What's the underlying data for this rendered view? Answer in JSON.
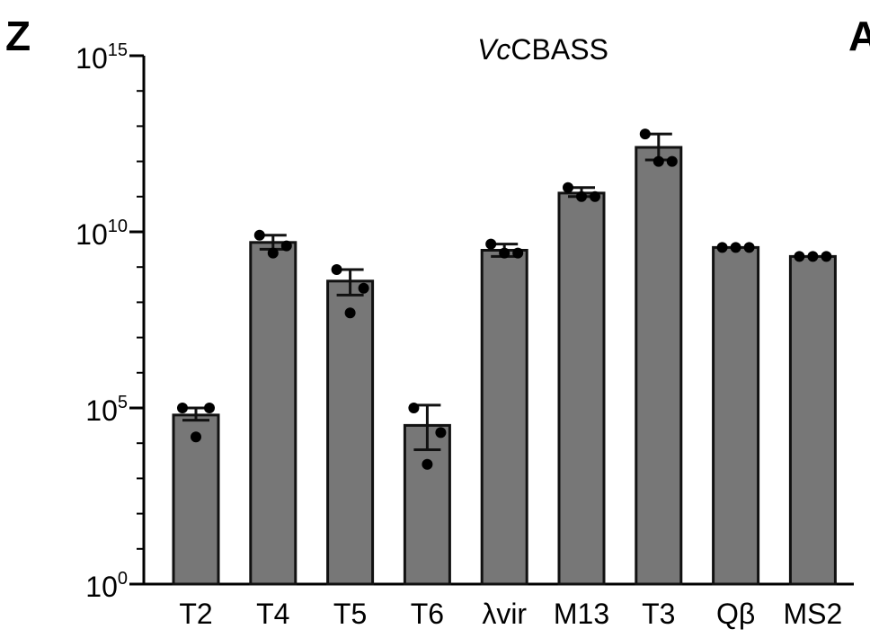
{
  "panel_label": "Z",
  "panel_label_cut": "A",
  "chart_data": {
    "type": "bar",
    "title": "VcCBASS",
    "title_italic_part": "Vc",
    "title_rest": "CBASS",
    "yscale": "log",
    "ylim": [
      1,
      1000000000000000.0
    ],
    "yticks": [
      {
        "base": "10",
        "exp": "15"
      },
      {
        "base": "10",
        "exp": "10"
      },
      {
        "base": "10",
        "exp": "5"
      },
      {
        "base": "10",
        "exp": "0"
      }
    ],
    "ytick_values": [
      1000000000000000.0,
      10000000000.0,
      100000.0,
      1
    ],
    "categories": [
      "T2",
      "T4",
      "T5",
      "T6",
      "λvir",
      "M13",
      "T3",
      "Qβ",
      "MS2"
    ],
    "values": [
      63000.0,
      5000000000.0,
      400000000.0,
      32000.0,
      3000000000.0,
      126000000000.0,
      2500000000000.0,
      3600000000.0,
      2000000000.0
    ],
    "error_bars": [
      [
        45000.0,
        100000.0
      ],
      [
        3200000000.0,
        8000000000.0
      ],
      [
        160000000.0,
        850000000.0
      ],
      [
        6500.0,
        120000.0
      ],
      [
        2000000000.0,
        4500000000.0
      ],
      [
        100000000000.0,
        180000000000.0
      ],
      [
        1100000000000.0,
        6000000000000.0
      ],
      null,
      null
    ],
    "points": [
      [
        100000.0,
        100000.0,
        15000.0
      ],
      [
        8000000000.0,
        4000000000.0,
        2500000000.0
      ],
      [
        850000000.0,
        250000000.0,
        50000000.0
      ],
      [
        100000.0,
        20000.0,
        2500.0
      ],
      [
        4500000000.0,
        2500000000.0,
        2500000000.0
      ],
      [
        180000000000.0,
        100000000000.0,
        100000000000.0
      ],
      [
        6000000000000.0,
        1000000000000.0,
        1000000000000.0
      ],
      [
        3600000000.0,
        3600000000.0,
        3600000000.0
      ],
      [
        2000000000.0,
        2000000000.0,
        2000000000.0
      ]
    ],
    "bar_color": "#777777",
    "point_color": "#000000",
    "grid": false,
    "legend": "none"
  }
}
